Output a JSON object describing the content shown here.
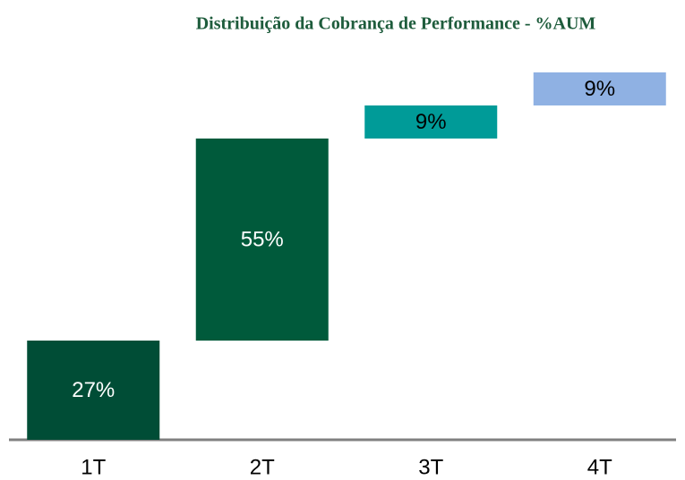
{
  "chart_data": {
    "type": "waterfall",
    "title": "Distribuição da Cobrança de Performance - %AUM",
    "categories": [
      "1T",
      "2T",
      "3T",
      "4T"
    ],
    "values": [
      27,
      55,
      9,
      9
    ],
    "value_labels": [
      "27%",
      "55%",
      "9%",
      "9%"
    ],
    "colors": [
      "#004d36",
      "#005a3b",
      "#009b98",
      "#8fb1e3"
    ],
    "label_colors": [
      "#ffffff",
      "#ffffff",
      "#000000",
      "#000000"
    ],
    "ylim": [
      0,
      100
    ]
  }
}
